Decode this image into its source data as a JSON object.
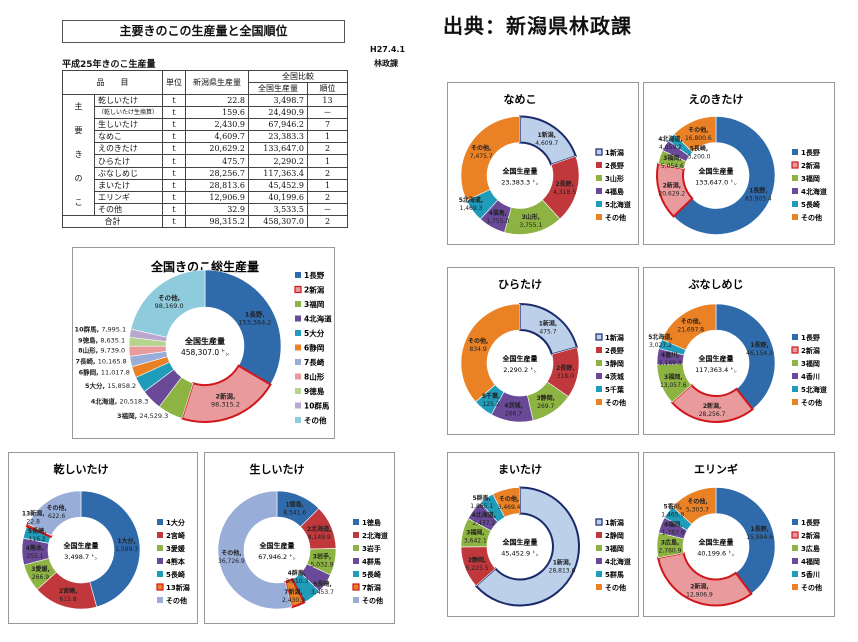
{
  "header": {
    "title": "主要きのこの生産量と全国順位",
    "source": "出典：新潟県林政課",
    "date": "H27.4.1",
    "dept": "林政課",
    "subtitle": "平成25年きのこ生産量"
  },
  "table": {
    "headers": {
      "item": "品　　目",
      "unit": "単位",
      "niigata": "新潟県生産量",
      "compare": "全国比較",
      "national": "全国生産量",
      "rank": "順位"
    },
    "group_label": [
      "主",
      "要",
      "き",
      "の",
      "こ"
    ],
    "rows": [
      {
        "name": "乾しいたけ",
        "unit": "t",
        "niigata": "22.8",
        "national": "3,498.7",
        "rank": "13"
      },
      {
        "name": "（乾しいたけ生換算）",
        "unit": "t",
        "niigata": "159.6",
        "national": "24,490.9",
        "rank": "－"
      },
      {
        "name": "生しいたけ",
        "unit": "t",
        "niigata": "2,430.9",
        "national": "67,946.2",
        "rank": "7"
      },
      {
        "name": "なめこ",
        "unit": "t",
        "niigata": "4,609.7",
        "national": "23,383.3",
        "rank": "1"
      },
      {
        "name": "えのきたけ",
        "unit": "t",
        "niigata": "20,629.2",
        "national": "133,647.0",
        "rank": "2"
      },
      {
        "name": "ひらたけ",
        "unit": "t",
        "niigata": "475.7",
        "national": "2,290.2",
        "rank": "1"
      },
      {
        "name": "ぶなしめじ",
        "unit": "t",
        "niigata": "28,256.7",
        "national": "117,363.4",
        "rank": "2"
      },
      {
        "name": "まいたけ",
        "unit": "t",
        "niigata": "28,813.6",
        "national": "45,452.9",
        "rank": "1"
      },
      {
        "name": "エリンギ",
        "unit": "t",
        "niigata": "12,906.9",
        "national": "40,199.6",
        "rank": "2"
      },
      {
        "name": "その他",
        "unit": "t",
        "niigata": "32.9",
        "national": "3,533.5",
        "rank": "－"
      }
    ],
    "total": {
      "name": "合計",
      "unit": "t",
      "niigata": "98,315.2",
      "national": "458,307.0",
      "rank": "2"
    }
  },
  "colors": {
    "blue": "#2f6aab",
    "red": "#c0383c",
    "green": "#8db343",
    "purple": "#6a4a98",
    "teal": "#1f9cb9",
    "orange": "#ea8125",
    "lightblue": "#bcd0ea",
    "pink": "#e99a9c",
    "peri": "#98aed8",
    "cyan": "#8ecbdc",
    "lgreen": "#b5d58f",
    "lpurple": "#b9a7d0",
    "navy": "#1b2a6b",
    "hl": "#d0171c"
  },
  "chart_data": [
    {
      "id": "total",
      "type": "pie",
      "title": "全国きのこ総生産量",
      "center_label": "全国生産量",
      "center_value": "458,307.0 ㌧",
      "slices": [
        {
          "name": "1長野",
          "value": 153364.2,
          "label": "153,364.2",
          "color": "blue"
        },
        {
          "name": "2新潟",
          "value": 98315.2,
          "label": "98,315.2",
          "color": "pink",
          "highlight": true
        },
        {
          "name": "3福岡",
          "value": 24529.3,
          "label": "24,529.3",
          "color": "green"
        },
        {
          "name": "4北海道",
          "value": 20518.3,
          "label": "20,518.3",
          "color": "purple"
        },
        {
          "name": "5大分",
          "value": 15858.2,
          "label": "15,858.2",
          "color": "teal"
        },
        {
          "name": "6静岡",
          "value": 11017.8,
          "label": "11,017.8",
          "color": "orange"
        },
        {
          "name": "7長崎",
          "value": 10165.8,
          "label": "10,165.8",
          "color": "peri"
        },
        {
          "name": "8山形",
          "value": 9739.0,
          "label": "9,739.0",
          "color": "pink"
        },
        {
          "name": "9徳島",
          "value": 8635.1,
          "label": "8,635.1",
          "color": "lgreen"
        },
        {
          "name": "10群馬",
          "value": 7995.1,
          "label": "7,995.1",
          "color": "lpurple"
        },
        {
          "name": "その他",
          "value": 98169.0,
          "label": "98,169.0",
          "color": "cyan"
        }
      ]
    },
    {
      "id": "nameko",
      "type": "pie",
      "title": "なめこ",
      "center_label": "全国生産量",
      "center_value": "23,383.3 ㌧",
      "slices": [
        {
          "name": "1新潟",
          "value": 4609.7,
          "label": "4,609.7",
          "color": "lightblue",
          "highlight": "navy"
        },
        {
          "name": "2長野",
          "value": 4318.5,
          "label": "4,318.5",
          "color": "red"
        },
        {
          "name": "3山形",
          "value": 3755.1,
          "label": "3,755.1",
          "color": "green"
        },
        {
          "name": "4福島",
          "value": 1755.0,
          "label": "1,755.0",
          "color": "purple"
        },
        {
          "name": "5北海道",
          "value": 1469.3,
          "label": "1,469.3",
          "color": "teal"
        },
        {
          "name": "その他",
          "value": 7475.7,
          "label": "7,475.7",
          "color": "orange"
        }
      ]
    },
    {
      "id": "enoki",
      "type": "pie",
      "title": "えのきたけ",
      "center_label": "全国生産量",
      "center_value": "133,647.0 ㌧",
      "slices": [
        {
          "name": "1長野",
          "value": 83903.4,
          "label": "83,903.4",
          "color": "blue"
        },
        {
          "name": "2新潟",
          "value": 20629.2,
          "label": "20,629.2",
          "color": "pink",
          "highlight": true
        },
        {
          "name": "3福岡",
          "value": 5054.6,
          "label": "5,054.6",
          "color": "green"
        },
        {
          "name": "4北海道",
          "value": 4059.2,
          "label": "4,059.2",
          "color": "purple"
        },
        {
          "name": "5長崎",
          "value": 3200.0,
          "label": "3,200.0",
          "color": "teal"
        },
        {
          "name": "その他",
          "value": 16800.6,
          "label": "16,800.6",
          "color": "orange"
        }
      ]
    },
    {
      "id": "hiratake",
      "type": "pie",
      "title": "ひらたけ",
      "center_label": "全国生産量",
      "center_value": "2,290.2 ㌧",
      "slices": [
        {
          "name": "1新潟",
          "value": 475.7,
          "label": "475.7",
          "color": "lightblue",
          "highlight": "navy"
        },
        {
          "name": "2長野",
          "value": 318.0,
          "label": "318.0",
          "color": "red"
        },
        {
          "name": "3静岡",
          "value": 269.7,
          "label": "269.7",
          "color": "green"
        },
        {
          "name": "4茨城",
          "value": 266.7,
          "label": "266.7",
          "color": "purple"
        },
        {
          "name": "5千葉",
          "value": 125.2,
          "label": "125.2",
          "color": "teal"
        },
        {
          "name": "その他",
          "value": 834.9,
          "label": "834.9",
          "color": "orange"
        }
      ]
    },
    {
      "id": "bunashimeji",
      "type": "pie",
      "title": "ぶなしめじ",
      "center_label": "全国生産量",
      "center_value": "117,363.4 ㌧",
      "slices": [
        {
          "name": "1長野",
          "value": 46154.3,
          "label": "46,154.3",
          "color": "blue"
        },
        {
          "name": "2新潟",
          "value": 28256.7,
          "label": "28,256.7",
          "color": "pink",
          "highlight": true
        },
        {
          "name": "3福岡",
          "value": 13057.6,
          "label": "13,057.6",
          "color": "green"
        },
        {
          "name": "4香川",
          "value": 5169.8,
          "label": "5,169.8",
          "color": "purple"
        },
        {
          "name": "5北海道",
          "value": 3027.2,
          "label": "3,027.2",
          "color": "teal"
        },
        {
          "name": "その他",
          "value": 21697.8,
          "label": "21,697.8",
          "color": "orange"
        }
      ]
    },
    {
      "id": "maitake",
      "type": "pie",
      "title": "まいたけ",
      "center_label": "全国生産量",
      "center_value": "45,452.9 ㌧",
      "slices": [
        {
          "name": "1新潟",
          "value": 28813.6,
          "label": "28,813.6",
          "color": "lightblue",
          "highlight": "navy"
        },
        {
          "name": "2静岡",
          "value": 5225.5,
          "label": "5,225.5",
          "color": "red"
        },
        {
          "name": "3福岡",
          "value": 3642.1,
          "label": "3,642.1",
          "color": "green"
        },
        {
          "name": "4北海道",
          "value": 2437.2,
          "label": "2,437.2",
          "color": "purple"
        },
        {
          "name": "5群馬",
          "value": 1865.1,
          "label": "1,865.1",
          "color": "teal"
        },
        {
          "name": "その他",
          "value": 3469.4,
          "label": "3,469.4",
          "color": "orange"
        }
      ]
    },
    {
      "id": "eringi",
      "type": "pie",
      "title": "エリンギ",
      "center_label": "全国生産量",
      "center_value": "40,199.6 ㌧",
      "slices": [
        {
          "name": "1長野",
          "value": 15994.6,
          "label": "15,994.6",
          "color": "blue"
        },
        {
          "name": "2新潟",
          "value": 12906.9,
          "label": "12,906.9",
          "color": "pink",
          "highlight": true
        },
        {
          "name": "3広島",
          "value": 2760.9,
          "label": "2,760.9",
          "color": "green"
        },
        {
          "name": "4福岡",
          "value": 1767.6,
          "label": "1,767.6",
          "color": "purple"
        },
        {
          "name": "5香川",
          "value": 1465.9,
          "label": "1,465.9",
          "color": "teal"
        },
        {
          "name": "その他",
          "value": 5303.7,
          "label": "5,303.7",
          "color": "orange"
        }
      ]
    },
    {
      "id": "hoshi",
      "type": "pie",
      "title": "乾しいたけ",
      "center_label": "全国生産量",
      "center_value": "3,498.7 ㌧",
      "slices": [
        {
          "name": "1大分",
          "value": 1599.3,
          "label": "1,599.3",
          "color": "blue"
        },
        {
          "name": "2宮崎",
          "value": 615.8,
          "label": "615.8",
          "color": "red"
        },
        {
          "name": "3愛媛",
          "value": 266.9,
          "label": "266.9",
          "color": "green"
        },
        {
          "name": "4熊本",
          "value": 255.1,
          "label": "255.1",
          "color": "purple"
        },
        {
          "name": "5長崎",
          "value": 116.2,
          "label": "116.2",
          "color": "teal"
        },
        {
          "name": "13新潟",
          "value": 22.8,
          "label": "22.8",
          "color": "orange",
          "highlight": true
        },
        {
          "name": "その他",
          "value": 622.6,
          "label": "622.6",
          "color": "peri"
        }
      ]
    },
    {
      "id": "nama",
      "type": "pie",
      "title": "生しいたけ",
      "center_label": "全国生産量",
      "center_value": "67,946.2 ㌧",
      "slices": [
        {
          "name": "1徳島",
          "value": 8541.6,
          "label": "8,541.6",
          "color": "blue"
        },
        {
          "name": "2北海道",
          "value": 8149.9,
          "label": "8,149.9",
          "color": "red"
        },
        {
          "name": "3岩手",
          "value": 5032.9,
          "label": "5,032.9",
          "color": "green"
        },
        {
          "name": "4群馬",
          "value": 3610.3,
          "label": "3,610.3",
          "color": "purple"
        },
        {
          "name": "5長崎",
          "value": 3453.7,
          "label": "3,453.7",
          "color": "teal"
        },
        {
          "name": "7新潟",
          "value": 2430.9,
          "label": "2,430.9",
          "color": "orange",
          "highlight": true
        },
        {
          "name": "その他",
          "value": 36726.9,
          "label": "36,726.9",
          "color": "peri"
        }
      ]
    }
  ]
}
